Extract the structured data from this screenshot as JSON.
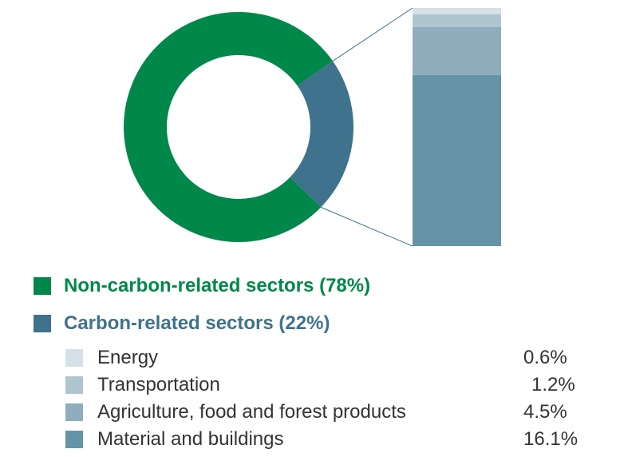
{
  "chart_data": {
    "type": "pie",
    "slices": [
      {
        "label": "Non-carbon-related sectors (78%)",
        "value": 78,
        "color": "#00874A"
      },
      {
        "label": "Carbon-related sectors (22%)",
        "value": 22,
        "color": "#3F728C"
      }
    ],
    "breakdown": {
      "type": "stacked-bar",
      "of": "Carbon-related sectors (22%)",
      "items": [
        {
          "label": "Energy",
          "value": 0.6,
          "value_text": "0.6%",
          "color": "#D5E1E6"
        },
        {
          "label": "Transportation",
          "value": 1.2,
          "value_text": "1.2%",
          "color": "#AFC6D0"
        },
        {
          "label": "Agriculture, food and forest products",
          "value": 4.5,
          "value_text": "4.5%",
          "color": "#8FADBC"
        },
        {
          "label": "Material and buildings",
          "value": 16.1,
          "value_text": "16.1%",
          "color": "#6593A7"
        }
      ]
    },
    "legend_position": "bottom"
  },
  "colors": {
    "non_carbon_text": "#00874A",
    "carbon_text": "#3F728C",
    "connector": "#3F728C"
  }
}
